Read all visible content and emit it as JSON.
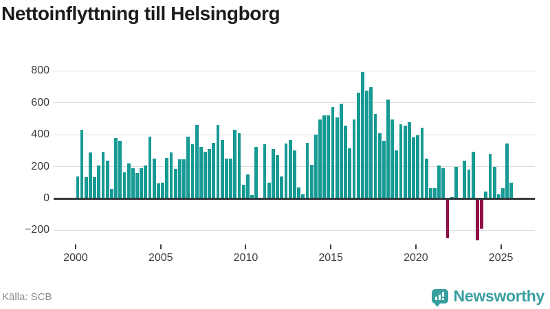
{
  "header": {
    "title": "Nettoinflyttning till Helsingborg"
  },
  "footer": {
    "source_label": "Källa: SCB",
    "brand": "Newsworthy"
  },
  "colors": {
    "positive_bar": "#179a94",
    "negative_bar": "#8e1044",
    "gridline": "#dcdcdc",
    "zero_line": "#343a3d",
    "brand_teal": "#3a9fa0"
  },
  "chart_data": {
    "type": "bar",
    "title": "Nettoinflyttning till Helsingborg",
    "xlabel": "",
    "ylabel": "",
    "frequency": "quarterly",
    "start_period": "2000 Q1",
    "end_period": "2025 Q3",
    "grid": "horizontal",
    "legend": "none",
    "ylim": [
      -270,
      880
    ],
    "y_ticks": [
      800,
      600,
      400,
      200,
      0,
      -200
    ],
    "y_tick_labels": [
      "800",
      "600",
      "400",
      "200",
      "0",
      "−200"
    ],
    "x_ticks": [
      {
        "year": 2000,
        "label": "2000"
      },
      {
        "year": 2005,
        "label": "2005"
      },
      {
        "year": 2010,
        "label": "2010"
      },
      {
        "year": 2015,
        "label": "2015"
      },
      {
        "year": 2020,
        "label": "2020"
      },
      {
        "year": 2025,
        "label": "2025"
      }
    ],
    "values": [
      140,
      430,
      135,
      290,
      135,
      205,
      295,
      235,
      60,
      380,
      360,
      165,
      220,
      190,
      160,
      190,
      205,
      390,
      250,
      95,
      100,
      255,
      290,
      185,
      245,
      245,
      390,
      340,
      460,
      325,
      295,
      310,
      350,
      460,
      365,
      250,
      250,
      430,
      410,
      85,
      150,
      20,
      325,
      5,
      340,
      100,
      310,
      270,
      140,
      345,
      365,
      300,
      70,
      25,
      350,
      210,
      400,
      495,
      520,
      520,
      575,
      510,
      595,
      455,
      315,
      495,
      665,
      795,
      675,
      700,
      530,
      410,
      360,
      620,
      495,
      300,
      465,
      455,
      480,
      385,
      395,
      445,
      250,
      65,
      65,
      205,
      190,
      -250,
      10,
      200,
      0,
      235,
      180,
      295,
      -265,
      -190,
      45,
      280,
      200,
      25,
      65,
      345,
      100
    ]
  }
}
